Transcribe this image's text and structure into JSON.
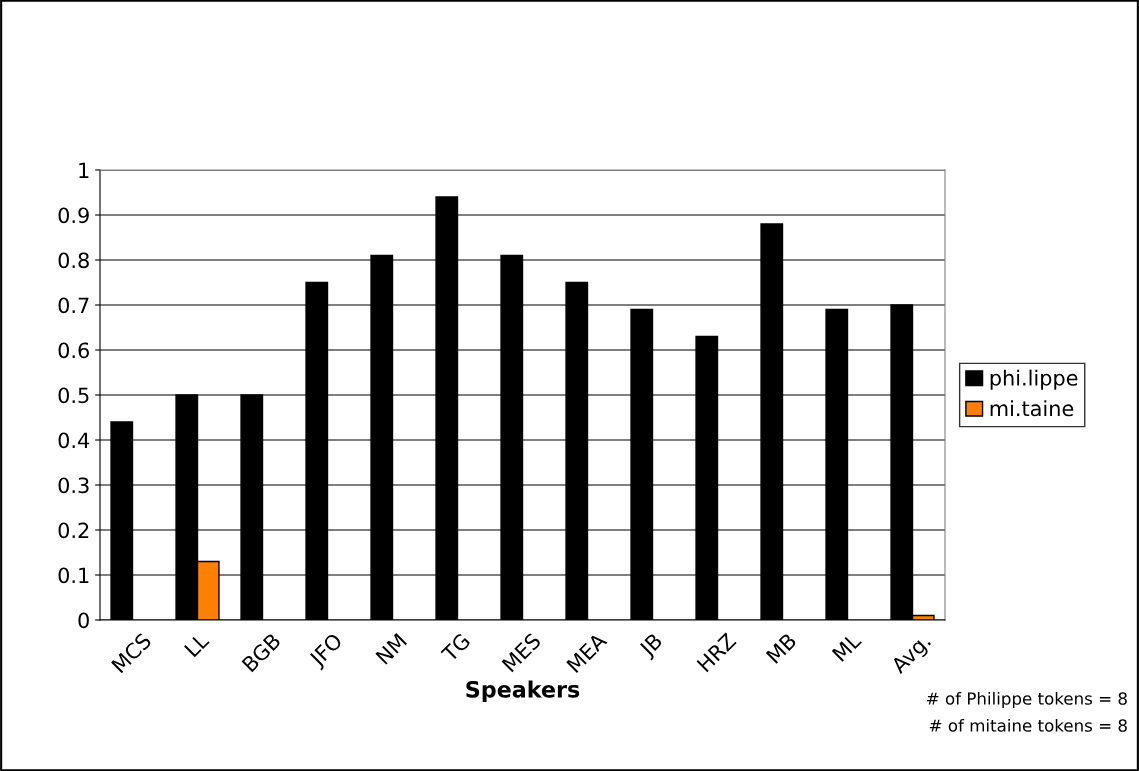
{
  "chart_data": {
    "type": "bar",
    "xlabel": "Speakers",
    "categories": [
      "MCS",
      "LL",
      "BGB",
      "JFO",
      "NM",
      "TG",
      "MES",
      "MEA",
      "JB",
      "HRZ",
      "MB",
      "ML",
      "Avg."
    ],
    "series": [
      {
        "name": "phi.lippe",
        "color": "#000000",
        "values": [
          0.44,
          0.5,
          0.5,
          0.75,
          0.81,
          0.94,
          0.81,
          0.75,
          0.69,
          0.63,
          0.88,
          0.69,
          0.7
        ]
      },
      {
        "name": "mi.taine",
        "color": "#ff8000",
        "values": [
          0,
          0.13,
          0,
          0,
          0,
          0,
          0,
          0,
          0,
          0,
          0,
          0,
          0.01
        ]
      }
    ],
    "ylim": [
      0,
      1
    ],
    "yticks": [
      0,
      0.1,
      0.2,
      0.3,
      0.4,
      0.5,
      0.6,
      0.7,
      0.8,
      0.9,
      1
    ],
    "grid": "y",
    "legend": "right",
    "annotations": [
      "# of Philippe tokens = 8",
      "# of mitaine tokens = 8"
    ]
  }
}
